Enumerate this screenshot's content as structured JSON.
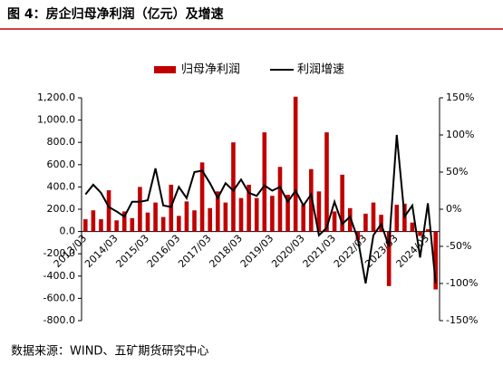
{
  "chart_data": {
    "type": "bar-line",
    "title": "图 4：房企归母净利润（亿元）及增速",
    "source": "数据来源：WIND、五矿期货研究中心",
    "categories": [
      "2013/03",
      null,
      null,
      null,
      "2014/03",
      null,
      null,
      null,
      "2015/03",
      null,
      null,
      null,
      "2016/03",
      null,
      null,
      null,
      "2017/03",
      null,
      null,
      null,
      "2018/03",
      null,
      null,
      null,
      "2019/03",
      null,
      null,
      null,
      "2020/03",
      null,
      null,
      null,
      "2021/03",
      null,
      null,
      null,
      "2022/03",
      null,
      null,
      null,
      "2023/03",
      null,
      null,
      null,
      "2024/03",
      null
    ],
    "series": [
      {
        "name": "归母净利润",
        "color": "#c00000",
        "type": "bar",
        "values": [
          110,
          190,
          110,
          370,
          100,
          180,
          120,
          400,
          170,
          260,
          130,
          420,
          140,
          270,
          190,
          620,
          210,
          360,
          260,
          800,
          300,
          420,
          300,
          890,
          320,
          580,
          330,
          1210,
          240,
          560,
          360,
          890,
          180,
          510,
          210,
          -80,
          160,
          260,
          150,
          -490,
          240,
          250,
          80,
          -40,
          20,
          -520
        ]
      },
      {
        "name": "利润增速",
        "color": "#000000",
        "type": "line",
        "axis": "y2",
        "values": [
          20,
          33,
          22,
          3,
          -3,
          -10,
          10,
          10,
          12,
          55,
          5,
          3,
          30,
          15,
          50,
          52,
          35,
          15,
          35,
          25,
          40,
          22,
          18,
          32,
          25,
          30,
          10,
          25,
          5,
          20,
          -35,
          -25,
          10,
          -20,
          -10,
          -40,
          -100,
          -35,
          -20,
          -50,
          100,
          -10,
          5,
          -65,
          8,
          -100
        ]
      }
    ],
    "ylim": [
      -800,
      1200
    ],
    "yticks": [
      {
        "value": -800,
        "label": "-800.0"
      },
      {
        "value": -600,
        "label": "-600.0"
      },
      {
        "value": -400,
        "label": "-400.0"
      },
      {
        "value": -200,
        "label": "-200.0"
      },
      {
        "value": 0,
        "label": "0.0"
      },
      {
        "value": 200,
        "label": "200.0"
      },
      {
        "value": 400,
        "label": "400.0"
      },
      {
        "value": 600,
        "label": "600.0"
      },
      {
        "value": 800,
        "label": "800.0"
      },
      {
        "value": 1000,
        "label": "1,000.0"
      },
      {
        "value": 1200,
        "label": "1,200.0"
      }
    ],
    "y2lim": [
      -150,
      150
    ],
    "y2ticks": [
      {
        "value": -150,
        "label": "-150%"
      },
      {
        "value": -100,
        "label": "-100%"
      },
      {
        "value": -50,
        "label": "-50%"
      },
      {
        "value": 0,
        "label": "0%"
      },
      {
        "value": 50,
        "label": "50%"
      },
      {
        "value": 100,
        "label": "100%"
      },
      {
        "value": 150,
        "label": "150%"
      }
    ],
    "legend": "top"
  }
}
